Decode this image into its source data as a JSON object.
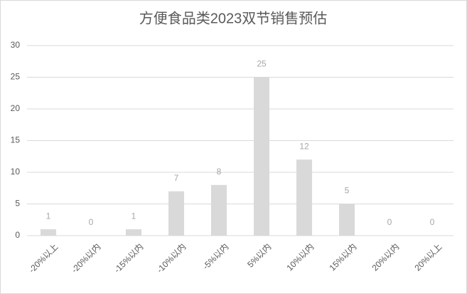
{
  "chart_data": {
    "type": "bar",
    "title": "方便食品类2023双节销售预估",
    "categories": [
      "-20%以上",
      "-20%以内",
      "-15%以内",
      "-10%以内",
      "-5%以内",
      "5%以内",
      "10%以内",
      "15%以内",
      "20%以内",
      "20%以上"
    ],
    "values": [
      1,
      0,
      1,
      7,
      8,
      25,
      12,
      5,
      0,
      0
    ],
    "color": "#d9d9d9",
    "ylim": [
      0,
      30
    ],
    "yticks": [
      0,
      5,
      10,
      15,
      20,
      25,
      30
    ],
    "grid": true
  }
}
